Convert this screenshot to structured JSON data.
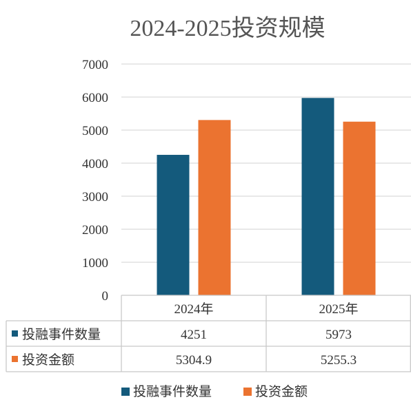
{
  "chart_data": {
    "type": "bar",
    "title": "2024-2025投资规模",
    "categories": [
      "2024年",
      "2025年"
    ],
    "series": [
      {
        "name": "投融事件数量",
        "values": [
          4251,
          5973
        ],
        "display": [
          "4251",
          "5973"
        ],
        "color": "#145a7c"
      },
      {
        "name": "投资金额",
        "values": [
          5304.9,
          5255.3
        ],
        "display": [
          "5304.9",
          "5255.3"
        ],
        "color": "#eb7330"
      }
    ],
    "ylim": [
      0,
      7000
    ],
    "yticks": [
      0,
      1000,
      2000,
      3000,
      4000,
      5000,
      6000,
      7000
    ],
    "grid": true,
    "data_table": true,
    "legend": "bottom"
  }
}
